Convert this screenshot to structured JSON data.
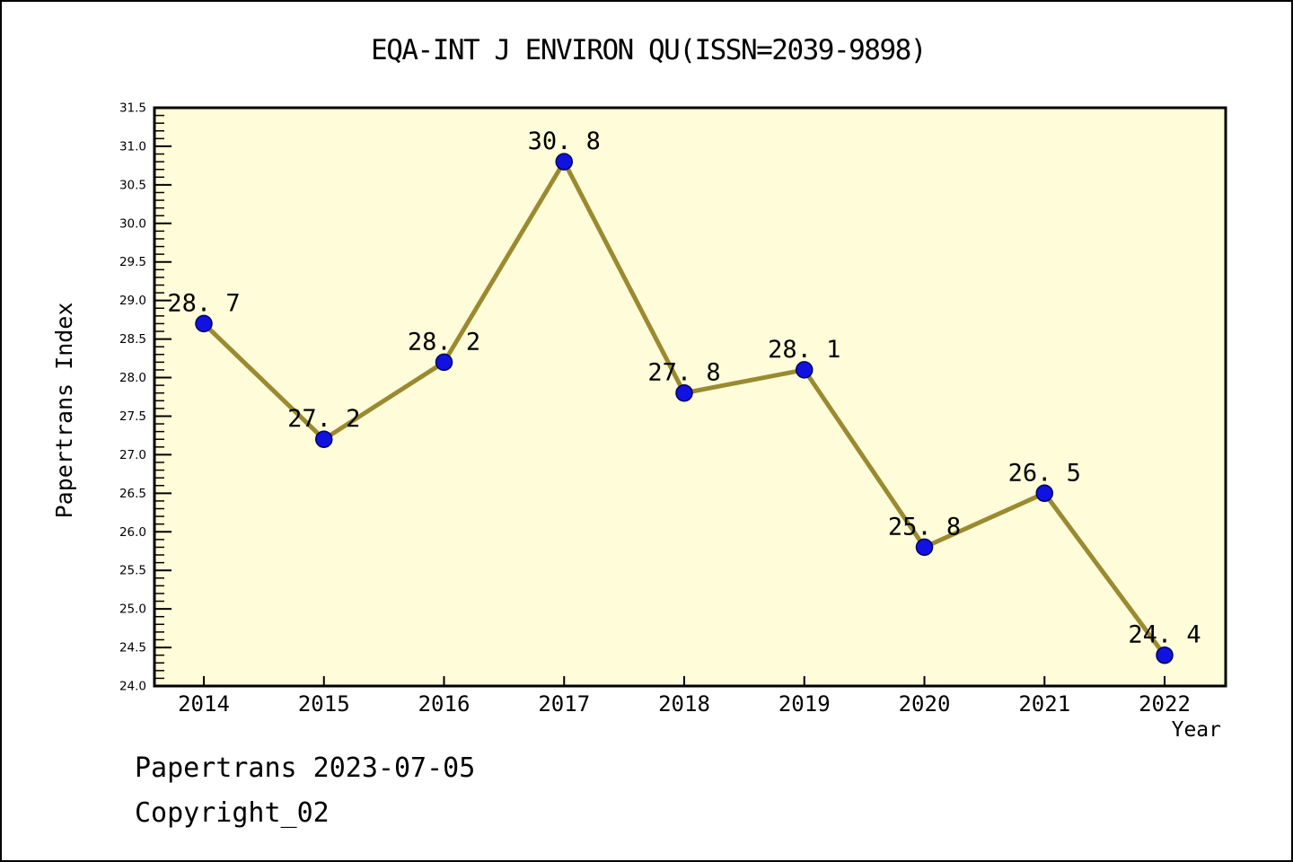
{
  "chart_data": {
    "type": "line",
    "title": "EQA-INT J ENVIRON QU(ISSN=2039-9898)",
    "xlabel": "Year",
    "ylabel": "Papertrans Index",
    "x": [
      2014,
      2015,
      2016,
      2017,
      2018,
      2019,
      2020,
      2021,
      2022
    ],
    "x_tick_labels": [
      "2014",
      "2015",
      "2016",
      "2017",
      "2018",
      "2019",
      "2020",
      "2021",
      "2022"
    ],
    "series": [
      {
        "name": "Papertrans Index",
        "values": [
          28.7,
          27.2,
          28.2,
          30.8,
          27.8,
          28.1,
          25.8,
          26.5,
          24.4
        ],
        "point_labels": [
          "28. 7",
          "27. 2",
          "28. 2",
          "30. 8",
          "27. 8",
          "28. 1",
          "25. 8",
          "26. 5",
          "24. 4"
        ]
      }
    ],
    "ylim": [
      24.0,
      31.5
    ],
    "y_major_step": 0.5,
    "y_minor_step": 0.1,
    "y_tick_labels": [
      "24.0",
      "24.5",
      "25.0",
      "25.5",
      "26.0",
      "26.5",
      "27.0",
      "27.5",
      "28.0",
      "28.5",
      "29.0",
      "29.5",
      "30.0",
      "30.5",
      "31.0",
      "31.5"
    ],
    "grid": false,
    "legend": "none",
    "styles": {
      "line_color": "#9a8a30",
      "marker_fill": "#1212e0",
      "marker_edge": "#000060",
      "plot_background": "#fffcd9",
      "axis_color": "#000000",
      "text_color": "#000000",
      "page_background": "#ffffff"
    }
  },
  "footer": {
    "line1": "Papertrans 2023-07-05",
    "line2": "Copyright_02"
  }
}
